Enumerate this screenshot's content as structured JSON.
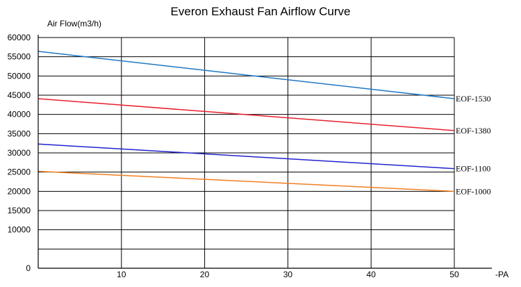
{
  "chart_data": {
    "type": "line",
    "title": "Everon Exhaust Fan Airflow Curve",
    "ylabel": "Air Flow(m3/h)",
    "xlabel": "-PA",
    "xlim": [
      0,
      50
    ],
    "ylim": [
      0,
      60000
    ],
    "xticks": [
      10,
      20,
      30,
      40,
      50
    ],
    "yticks": [
      0,
      10000,
      15000,
      20000,
      25000,
      30000,
      35000,
      40000,
      45000,
      50000,
      55000,
      60000
    ],
    "grid": true,
    "series": [
      {
        "name": "EOF-1530",
        "color": "#1f77c4",
        "x": [
          0,
          50
        ],
        "y": [
          56400,
          44100
        ]
      },
      {
        "name": "EOF-1380",
        "color": "#e8202a",
        "x": [
          0,
          50
        ],
        "y": [
          44100,
          35800
        ]
      },
      {
        "name": "EOF-1100",
        "color": "#2222cc",
        "x": [
          0,
          50
        ],
        "y": [
          32300,
          25900
        ]
      },
      {
        "name": "EOF-1000",
        "color": "#f07f20",
        "x": [
          0,
          50
        ],
        "y": [
          25200,
          20000
        ]
      }
    ]
  }
}
